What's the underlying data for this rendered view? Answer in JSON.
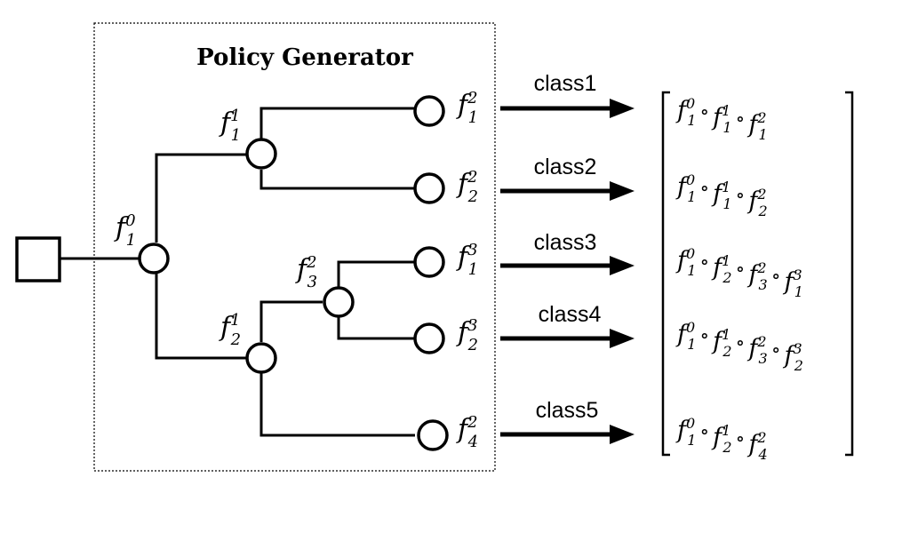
{
  "title": "Policy Generator",
  "root": {
    "name": "f",
    "sub": "1",
    "sup": "0"
  },
  "internal_nodes": [
    {
      "name": "f",
      "sub": "1",
      "sup": "1"
    },
    {
      "name": "f",
      "sub": "2",
      "sup": "1"
    },
    {
      "name": "f",
      "sub": "3",
      "sup": "2"
    }
  ],
  "leaves": [
    {
      "name": "f",
      "sub": "1",
      "sup": "2"
    },
    {
      "name": "f",
      "sub": "2",
      "sup": "2"
    },
    {
      "name": "f",
      "sub": "1",
      "sup": "3"
    },
    {
      "name": "f",
      "sub": "2",
      "sup": "3"
    },
    {
      "name": "f",
      "sub": "4",
      "sup": "2"
    }
  ],
  "classes": [
    {
      "label": "class1",
      "composition": [
        {
          "sub": "1",
          "sup": "0"
        },
        {
          "sub": "1",
          "sup": "1"
        },
        {
          "sub": "1",
          "sup": "2"
        }
      ]
    },
    {
      "label": "class2",
      "composition": [
        {
          "sub": "1",
          "sup": "0"
        },
        {
          "sub": "1",
          "sup": "1"
        },
        {
          "sub": "2",
          "sup": "2"
        }
      ]
    },
    {
      "label": "class3",
      "composition": [
        {
          "sub": "1",
          "sup": "0"
        },
        {
          "sub": "2",
          "sup": "1"
        },
        {
          "sub": "3",
          "sup": "2"
        },
        {
          "sub": "1",
          "sup": "3"
        }
      ]
    },
    {
      "label": "class4",
      "composition": [
        {
          "sub": "1",
          "sup": "0"
        },
        {
          "sub": "2",
          "sup": "1"
        },
        {
          "sub": "3",
          "sup": "2"
        },
        {
          "sub": "2",
          "sup": "3"
        }
      ]
    },
    {
      "label": "class5",
      "composition": [
        {
          "sub": "1",
          "sup": "0"
        },
        {
          "sub": "2",
          "sup": "1"
        },
        {
          "sub": "4",
          "sup": "2"
        }
      ]
    }
  ],
  "operator": "∘"
}
